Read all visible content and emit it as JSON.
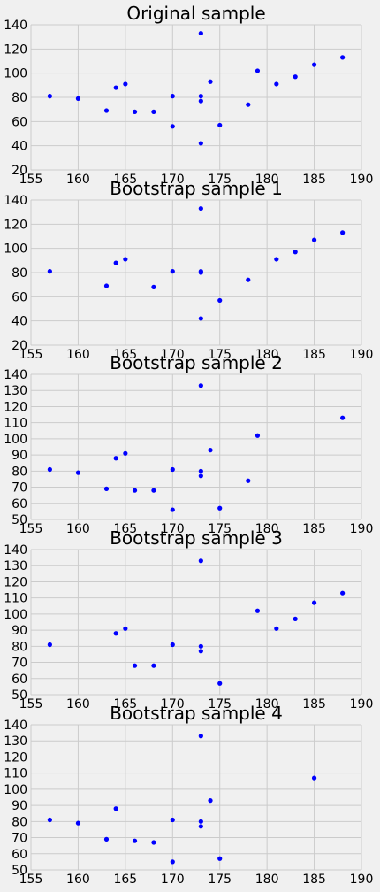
{
  "chart_data": [
    {
      "type": "scatter",
      "title": "Original sample",
      "xlim": [
        155,
        190
      ],
      "ylim": [
        20,
        140
      ],
      "xticks": [
        155,
        160,
        165,
        170,
        175,
        180,
        185,
        190
      ],
      "yticks": [
        20,
        40,
        60,
        80,
        100,
        120,
        140
      ],
      "grid": true,
      "point_color": "#0000ff",
      "x": [
        157,
        160,
        163,
        164,
        165,
        166,
        168,
        170,
        170,
        173,
        173,
        173,
        173,
        174,
        175,
        178,
        179,
        181,
        183,
        185,
        188
      ],
      "y": [
        81,
        79,
        69,
        88,
        91,
        68,
        68,
        81,
        56,
        133,
        81,
        77,
        42,
        93,
        57,
        74,
        102,
        91,
        97,
        107,
        113
      ]
    },
    {
      "type": "scatter",
      "title": "Bootstrap sample 1",
      "xlim": [
        155,
        190
      ],
      "ylim": [
        20,
        140
      ],
      "xticks": [
        155,
        160,
        165,
        170,
        175,
        180,
        185,
        190
      ],
      "yticks": [
        20,
        40,
        60,
        80,
        100,
        120,
        140
      ],
      "grid": true,
      "point_color": "#0000ff",
      "x": [
        157,
        163,
        164,
        165,
        168,
        170,
        173,
        173,
        173,
        173,
        175,
        178,
        181,
        183,
        185,
        188
      ],
      "y": [
        81,
        69,
        88,
        91,
        68,
        81,
        133,
        81,
        80,
        42,
        57,
        74,
        91,
        97,
        107,
        113
      ]
    },
    {
      "type": "scatter",
      "title": "Bootstrap sample 2",
      "xlim": [
        155,
        190
      ],
      "ylim": [
        50,
        140
      ],
      "xticks": [
        155,
        160,
        165,
        170,
        175,
        180,
        185,
        190
      ],
      "yticks": [
        50,
        60,
        70,
        80,
        90,
        100,
        110,
        120,
        130,
        140
      ],
      "grid": true,
      "point_color": "#0000ff",
      "x": [
        157,
        160,
        163,
        164,
        165,
        166,
        168,
        170,
        170,
        173,
        173,
        173,
        174,
        175,
        178,
        179,
        188
      ],
      "y": [
        81,
        79,
        69,
        88,
        91,
        68,
        68,
        81,
        56,
        133,
        80,
        77,
        93,
        57,
        74,
        102,
        113
      ]
    },
    {
      "type": "scatter",
      "title": "Bootstrap sample 3",
      "xlim": [
        155,
        190
      ],
      "ylim": [
        50,
        140
      ],
      "xticks": [
        155,
        160,
        165,
        170,
        175,
        180,
        185,
        190
      ],
      "yticks": [
        50,
        60,
        70,
        80,
        90,
        100,
        110,
        120,
        130,
        140
      ],
      "grid": true,
      "point_color": "#0000ff",
      "x": [
        157,
        164,
        165,
        166,
        168,
        170,
        173,
        173,
        173,
        175,
        179,
        181,
        183,
        185,
        188
      ],
      "y": [
        81,
        88,
        91,
        68,
        68,
        81,
        133,
        80,
        77,
        57,
        102,
        91,
        97,
        107,
        113
      ]
    },
    {
      "type": "scatter",
      "title": "Bootstrap sample 4",
      "xlim": [
        155,
        190
      ],
      "ylim": [
        50,
        140
      ],
      "xticks": [
        155,
        160,
        165,
        170,
        175,
        180,
        185,
        190
      ],
      "yticks": [
        50,
        60,
        70,
        80,
        90,
        100,
        110,
        120,
        130,
        140
      ],
      "grid": true,
      "point_color": "#0000ff",
      "x": [
        157,
        160,
        163,
        164,
        166,
        168,
        170,
        170,
        173,
        173,
        173,
        174,
        175,
        185
      ],
      "y": [
        81,
        79,
        69,
        88,
        68,
        67,
        81,
        55,
        133,
        80,
        77,
        93,
        57,
        107
      ]
    }
  ]
}
